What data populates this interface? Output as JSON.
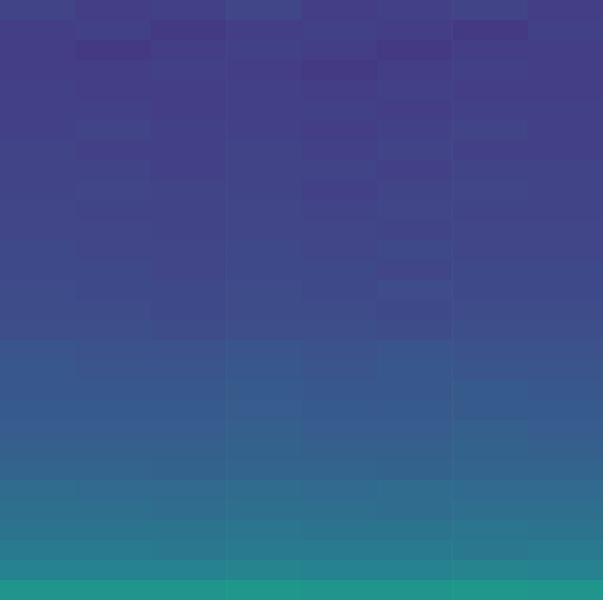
{
  "chart_data": {
    "type": "heatmap",
    "tick_labels": false,
    "zlim": [
      0,
      1
    ],
    "z": [
      [
        0.2,
        0.18,
        0.19,
        0.21,
        0.18,
        0.19,
        0.2,
        0.18
      ],
      [
        0.18,
        0.19,
        0.17,
        0.18,
        0.19,
        0.18,
        0.17,
        0.19
      ],
      [
        0.18,
        0.17,
        0.18,
        0.19,
        0.18,
        0.17,
        0.18,
        0.18
      ],
      [
        0.18,
        0.18,
        0.19,
        0.18,
        0.17,
        0.18,
        0.19,
        0.18
      ],
      [
        0.19,
        0.18,
        0.18,
        0.19,
        0.18,
        0.19,
        0.18,
        0.18
      ],
      [
        0.19,
        0.19,
        0.18,
        0.19,
        0.19,
        0.18,
        0.19,
        0.19
      ],
      [
        0.19,
        0.2,
        0.19,
        0.19,
        0.18,
        0.19,
        0.2,
        0.19
      ],
      [
        0.2,
        0.19,
        0.19,
        0.2,
        0.19,
        0.2,
        0.19,
        0.19
      ],
      [
        0.2,
        0.2,
        0.19,
        0.2,
        0.2,
        0.19,
        0.2,
        0.2
      ],
      [
        0.2,
        0.21,
        0.2,
        0.2,
        0.19,
        0.2,
        0.21,
        0.2
      ],
      [
        0.21,
        0.2,
        0.2,
        0.21,
        0.2,
        0.21,
        0.2,
        0.2
      ],
      [
        0.21,
        0.21,
        0.2,
        0.21,
        0.21,
        0.2,
        0.21,
        0.21
      ],
      [
        0.22,
        0.21,
        0.21,
        0.22,
        0.21,
        0.22,
        0.21,
        0.21
      ],
      [
        0.22,
        0.22,
        0.21,
        0.22,
        0.22,
        0.21,
        0.22,
        0.22
      ],
      [
        0.23,
        0.22,
        0.22,
        0.23,
        0.22,
        0.23,
        0.22,
        0.22
      ],
      [
        0.23,
        0.23,
        0.22,
        0.23,
        0.23,
        0.22,
        0.23,
        0.23
      ],
      [
        0.24,
        0.24,
        0.23,
        0.24,
        0.24,
        0.23,
        0.24,
        0.24
      ],
      [
        0.26,
        0.25,
        0.25,
        0.26,
        0.25,
        0.26,
        0.25,
        0.25
      ],
      [
        0.27,
        0.26,
        0.26,
        0.27,
        0.26,
        0.27,
        0.26,
        0.26
      ],
      [
        0.27,
        0.27,
        0.27,
        0.28,
        0.27,
        0.27,
        0.28,
        0.27
      ],
      [
        0.28,
        0.28,
        0.28,
        0.29,
        0.28,
        0.28,
        0.28,
        0.28
      ],
      [
        0.29,
        0.29,
        0.29,
        0.3,
        0.29,
        0.29,
        0.3,
        0.29
      ],
      [
        0.3,
        0.3,
        0.3,
        0.31,
        0.3,
        0.3,
        0.31,
        0.3
      ],
      [
        0.32,
        0.32,
        0.31,
        0.32,
        0.32,
        0.31,
        0.32,
        0.32
      ],
      [
        0.35,
        0.34,
        0.34,
        0.35,
        0.34,
        0.35,
        0.34,
        0.34
      ],
      [
        0.36,
        0.36,
        0.35,
        0.36,
        0.36,
        0.35,
        0.36,
        0.36
      ],
      [
        0.38,
        0.38,
        0.38,
        0.39,
        0.38,
        0.38,
        0.39,
        0.38
      ],
      [
        0.41,
        0.41,
        0.4,
        0.41,
        0.41,
        0.41,
        0.4,
        0.41
      ],
      [
        0.44,
        0.44,
        0.44,
        0.45,
        0.44,
        0.44,
        0.45,
        0.44
      ],
      [
        0.52,
        0.52,
        0.52,
        0.53,
        0.52,
        0.52,
        0.53,
        0.52
      ]
    ]
  }
}
